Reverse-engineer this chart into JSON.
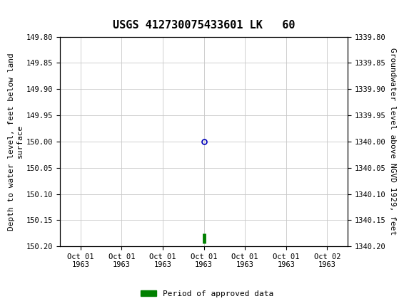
{
  "title": "USGS 412730075433601 LK   60",
  "ylabel_left": "Depth to water level, feet below land\nsurface",
  "ylabel_right": "Groundwater level above NGVD 1929, feet",
  "ylim_left": [
    149.8,
    150.2
  ],
  "ylim_right": [
    1339.8,
    1340.2
  ],
  "yticks_left": [
    149.8,
    149.85,
    149.9,
    149.95,
    150.0,
    150.05,
    150.1,
    150.15,
    150.2
  ],
  "yticks_right": [
    1339.8,
    1339.85,
    1339.9,
    1339.95,
    1340.0,
    1340.05,
    1340.1,
    1340.15,
    1340.2
  ],
  "data_point_x": 3,
  "data_point_y": 150.0,
  "bar_x": 3,
  "bar_y_lo": 150.175,
  "bar_y_hi": 150.195,
  "header_color": "#1a6b3a",
  "background_color": "#ffffff",
  "grid_color": "#c8c8c8",
  "point_color": "#0000bb",
  "bar_color": "#008000",
  "legend_label": "Period of approved data",
  "font_family": "monospace",
  "title_fontsize": 11,
  "axis_label_fontsize": 8,
  "tick_fontsize": 7.5,
  "x_tick_labels": [
    "Oct 01\n1963",
    "Oct 01\n1963",
    "Oct 01\n1963",
    "Oct 01\n1963",
    "Oct 01\n1963",
    "Oct 01\n1963",
    "Oct 02\n1963"
  ],
  "x_tick_positions": [
    0,
    1,
    2,
    3,
    4,
    5,
    6
  ],
  "x_lim": [
    -0.5,
    6.5
  ]
}
